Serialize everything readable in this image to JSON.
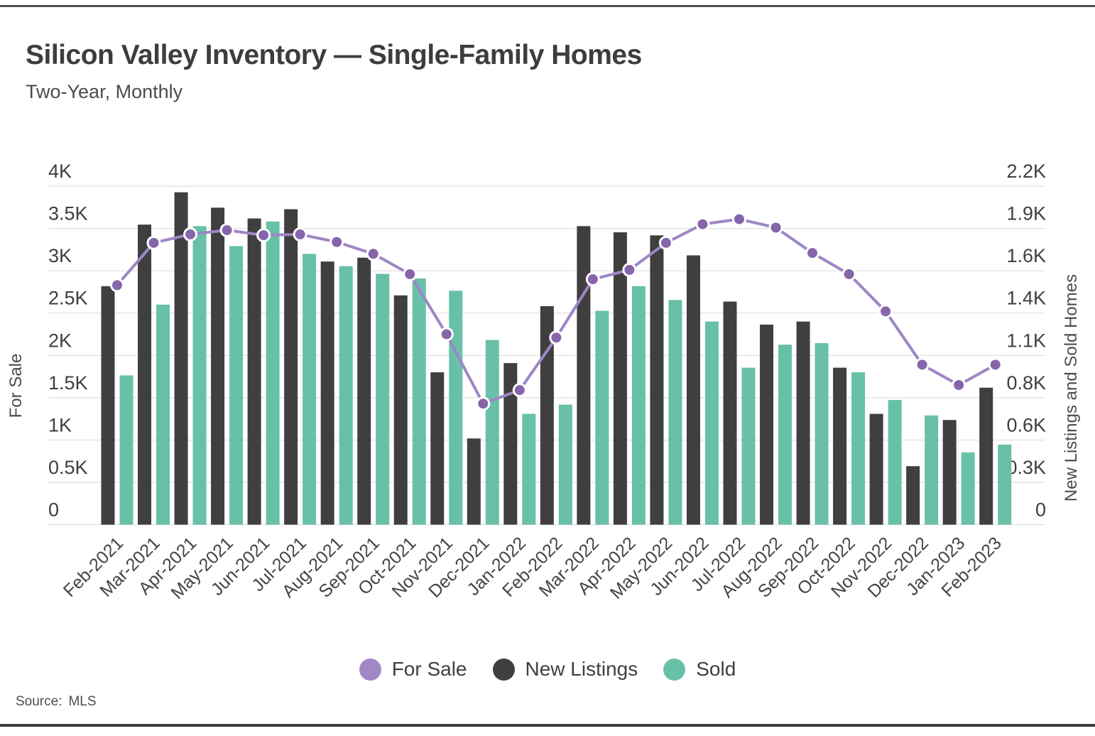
{
  "header": {
    "title": "Silicon Valley Inventory — Single-Family Homes",
    "subtitle": "Two-Year, Monthly"
  },
  "footer": {
    "source_label": "Source:",
    "source_value": "MLS"
  },
  "legend": {
    "items": [
      {
        "label": "For Sale",
        "color": "#a287c6"
      },
      {
        "label": "New Listings",
        "color": "#3f3f3f"
      },
      {
        "label": "Sold",
        "color": "#68c0a9"
      }
    ]
  },
  "chart_data": {
    "type": "bar+line dual-axis",
    "title": "Silicon Valley Inventory — Single-Family Homes",
    "subtitle": "Two-Year, Monthly",
    "grid": "horizontal",
    "legend_position": "bottom",
    "categories": [
      "Feb-2021",
      "Mar-2021",
      "Apr-2021",
      "May-2021",
      "Jun-2021",
      "Jul-2021",
      "Aug-2021",
      "Sep-2021",
      "Oct-2021",
      "Nov-2021",
      "Dec-2021",
      "Jan-2022",
      "Feb-2022",
      "Mar-2022",
      "Apr-2022",
      "May-2022",
      "Jun-2022",
      "Jul-2022",
      "Aug-2022",
      "Sep-2022",
      "Oct-2022",
      "Nov-2022",
      "Dec-2022",
      "Jan-2023",
      "Feb-2023"
    ],
    "series": [
      {
        "name": "For Sale",
        "type": "line",
        "axis": "left",
        "color": "#9d86c5",
        "point_color": "#8665ab",
        "values": [
          2830,
          3330,
          3430,
          3480,
          3420,
          3430,
          3340,
          3200,
          2960,
          2250,
          1430,
          1590,
          2210,
          2900,
          3010,
          3330,
          3550,
          3610,
          3510,
          3210,
          2960,
          2520,
          1890,
          1650,
          1890
        ]
      },
      {
        "name": "New Listings",
        "type": "bar",
        "axis": "right",
        "color": "#3f3f3f",
        "values": [
          1550,
          1950,
          2160,
          2060,
          1990,
          2050,
          1710,
          1735,
          1490,
          990,
          560,
          1050,
          1420,
          1940,
          1900,
          1880,
          1750,
          1450,
          1300,
          1320,
          1020,
          720,
          380,
          680,
          890
        ]
      },
      {
        "name": "Sold",
        "type": "bar",
        "axis": "right",
        "color": "#68c0a9",
        "values": [
          970,
          1430,
          1940,
          1810,
          1970,
          1760,
          1680,
          1630,
          1600,
          1520,
          1200,
          720,
          780,
          1390,
          1550,
          1460,
          1320,
          1020,
          1170,
          1180,
          990,
          810,
          710,
          470,
          520
        ]
      }
    ],
    "axes": {
      "left": {
        "title": "For Sale",
        "range": [
          0,
          4000
        ],
        "ticks": [
          "4K",
          "3.5K",
          "3K",
          "2.5K",
          "2K",
          "1.5K",
          "1K",
          "0.5K",
          "0"
        ],
        "tick_values": [
          4000,
          3500,
          3000,
          2500,
          2000,
          1500,
          1000,
          500,
          0
        ]
      },
      "right": {
        "title": "New Listings and Sold Homes",
        "range": [
          0,
          2200
        ],
        "ticks": [
          "2.2K",
          "1.9K",
          "1.6K",
          "1.4K",
          "1.1K",
          "0.8K",
          "0.6K",
          "0.3K",
          "0"
        ]
      }
    }
  }
}
